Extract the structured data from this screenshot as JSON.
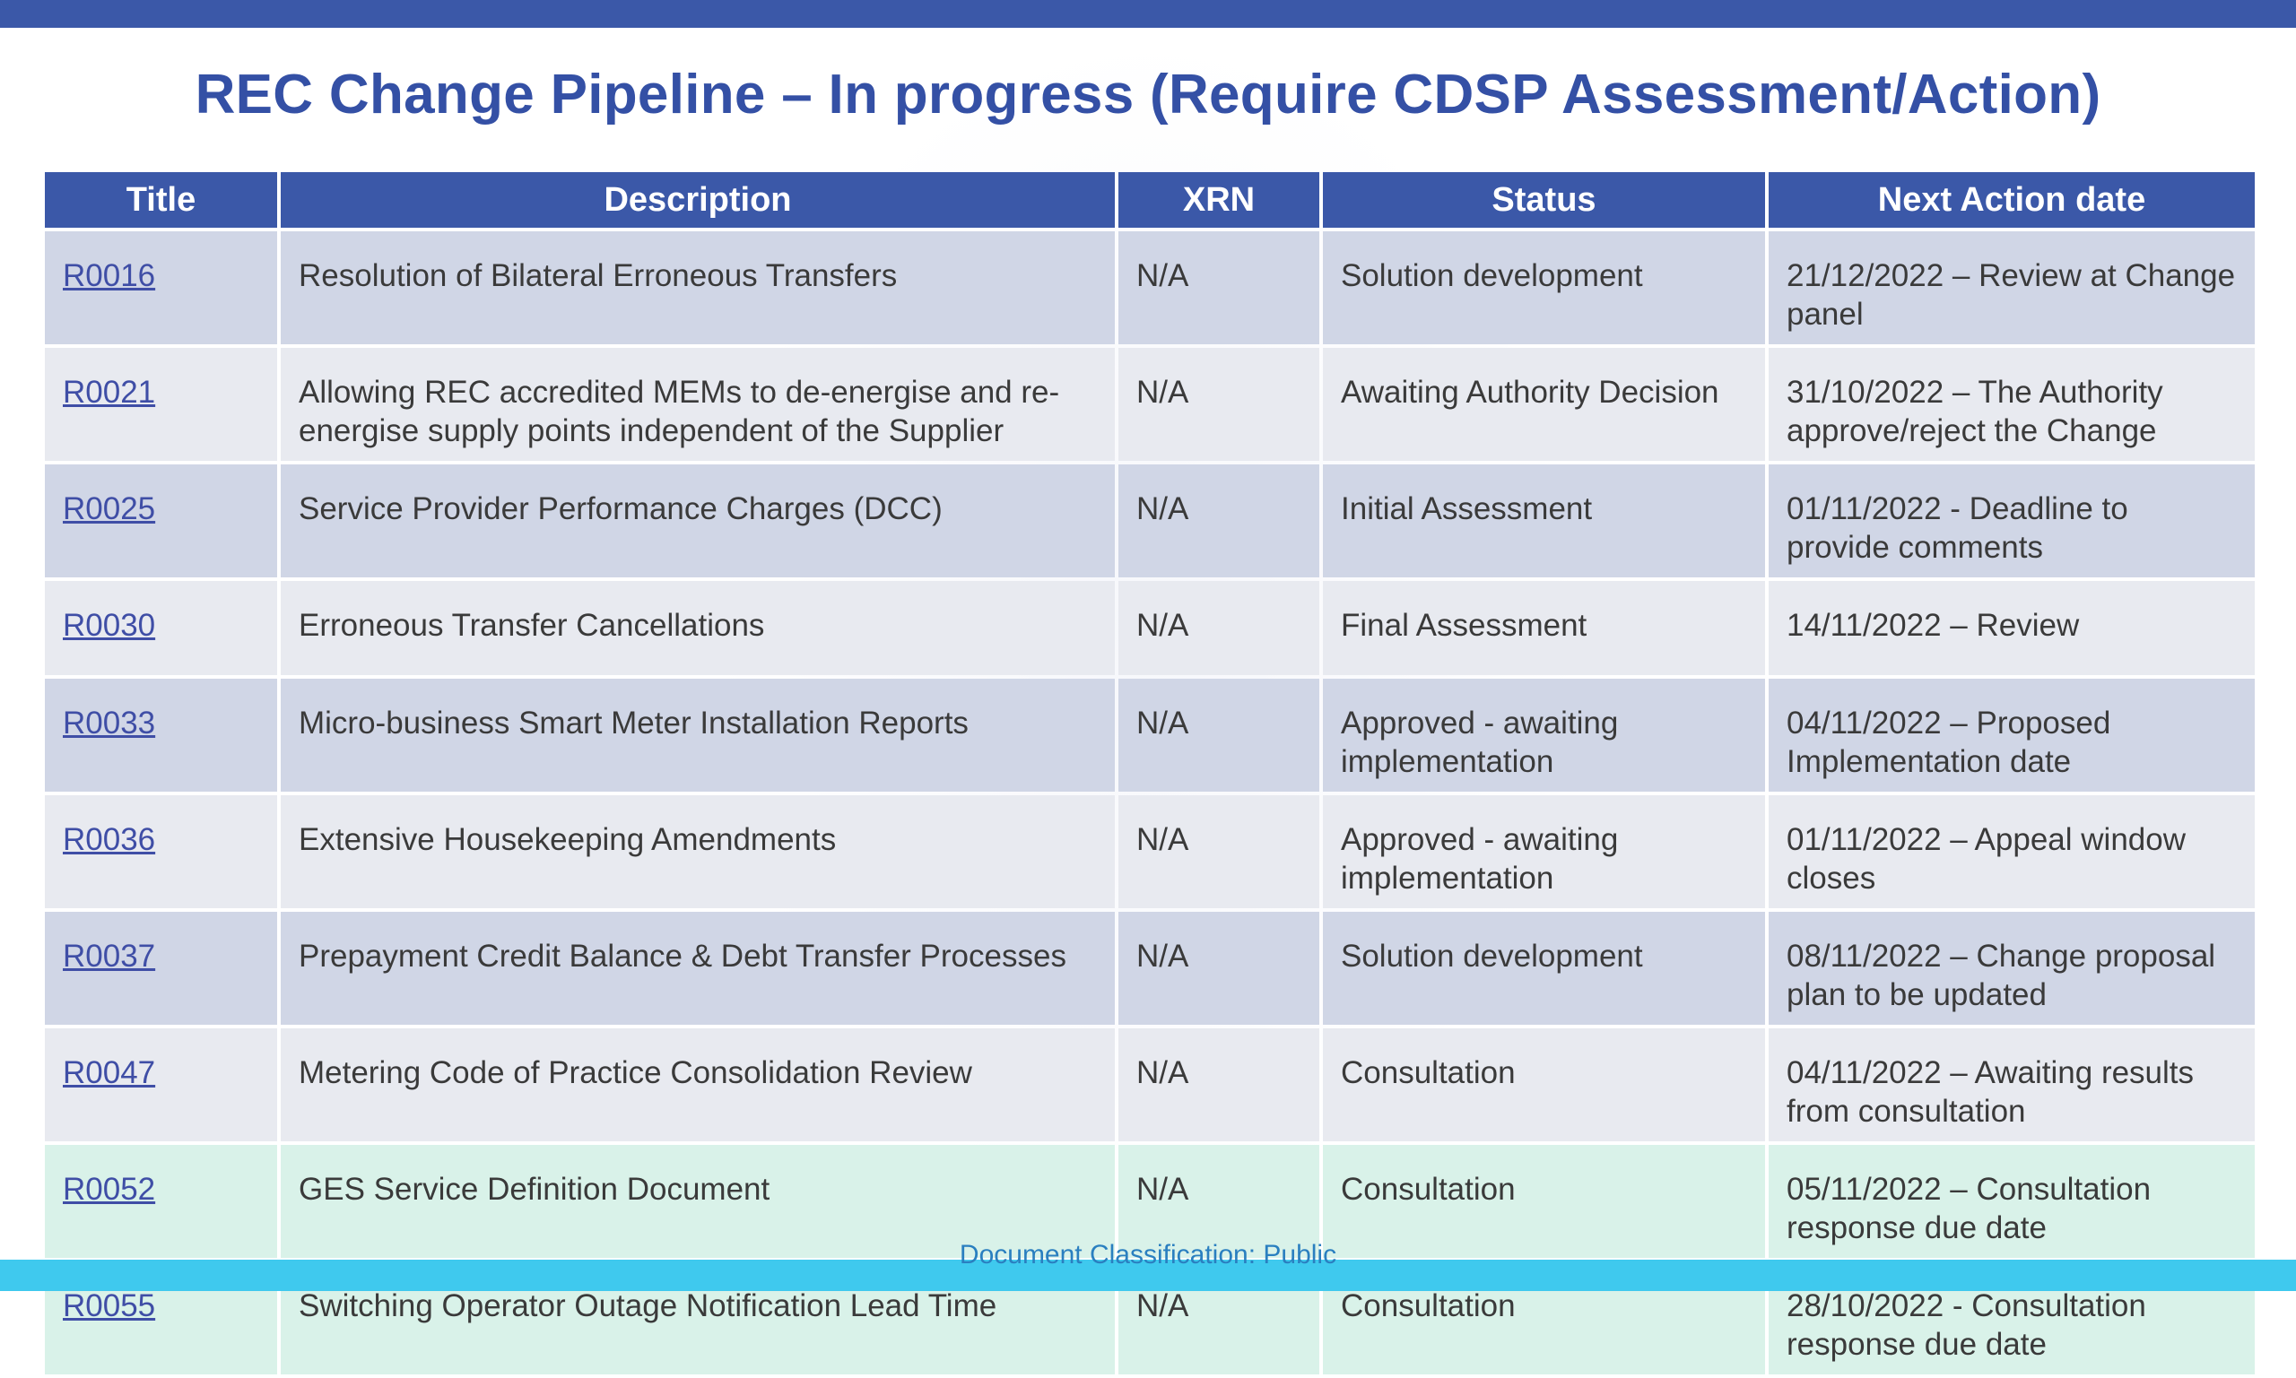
{
  "title": "REC Change Pipeline – In progress (Require CDSP Assessment/Action)",
  "table": {
    "headers": [
      "Title",
      "Description",
      "XRN",
      "Status",
      "Next Action date"
    ],
    "rows": [
      {
        "title": "R0016",
        "description": "Resolution of Bilateral Erroneous Transfers",
        "xrn": "N/A",
        "status": "Solution development",
        "next": "21/12/2022 – Review at Change panel"
      },
      {
        "title": "R0021",
        "description": "Allowing REC accredited MEMs to de-energise and re-energise supply points independent of the Supplier",
        "xrn": "N/A",
        "status": "Awaiting Authority Decision",
        "next": "31/10/2022 – The Authority approve/reject the Change"
      },
      {
        "title": "R0025",
        "description": "Service Provider Performance Charges (DCC)",
        "xrn": "N/A",
        "status": "Initial Assessment",
        "next": "01/11/2022 - Deadline to provide comments"
      },
      {
        "title": "R0030",
        "description": "Erroneous Transfer Cancellations",
        "xrn": "N/A",
        "status": "Final Assessment",
        "next": "14/11/2022 – Review"
      },
      {
        "title": "R0033",
        "description": "Micro-business Smart Meter Installation Reports",
        "xrn": "N/A",
        "status": "Approved - awaiting implementation",
        "next": "04/11/2022 – Proposed Implementation date"
      },
      {
        "title": "R0036",
        "description": "Extensive Housekeeping Amendments",
        "xrn": "N/A",
        "status": "Approved - awaiting implementation",
        "next": "01/11/2022 – Appeal window closes"
      },
      {
        "title": "R0037",
        "description": "Prepayment Credit Balance & Debt Transfer Processes",
        "xrn": "N/A",
        "status": "Solution development",
        "next": "08/11/2022 – Change proposal plan to be updated"
      },
      {
        "title": "R0047",
        "description": "Metering Code of Practice Consolidation Review",
        "xrn": "N/A",
        "status": "Consultation",
        "next": "04/11/2022 – Awaiting results from consultation"
      },
      {
        "title": "R0052",
        "description": "GES Service Definition Document",
        "xrn": "N/A",
        "status": "Consultation",
        "next": "05/11/2022 – Consultation response due date"
      },
      {
        "title": "R0055",
        "description": "Switching Operator Outage Notification Lead Time",
        "xrn": "N/A",
        "status": "Consultation",
        "next": "28/10/2022 - Consultation response due date"
      }
    ]
  },
  "footer": "Document Classification: Public"
}
